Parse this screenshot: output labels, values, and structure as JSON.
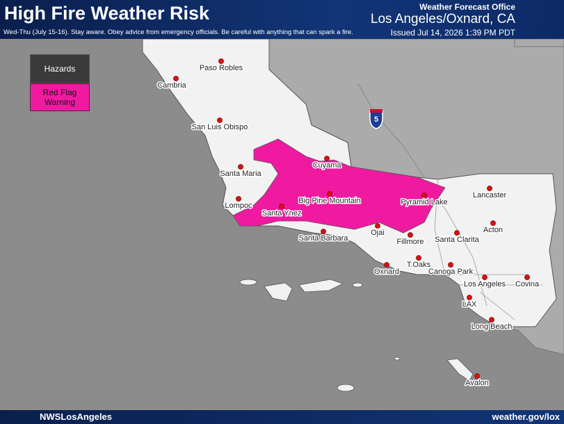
{
  "header": {
    "title": "High Fire Weather Risk",
    "subtitle": "Wed-Thu (July 15-16). Stay aware. Obey advice from emergency officials. Be careful with anything that can spark a fire.",
    "office": "Weather Forecast Office",
    "location": "Los Angeles/Oxnard, CA",
    "issued": "Issued Jul 14, 2026 1:39 PM PDT"
  },
  "legend": {
    "title": "Hazards",
    "items": [
      "Red Flag Warning"
    ]
  },
  "map": {
    "interstate": "5",
    "cities": [
      "Paso Robles",
      "Cambria",
      "San Luis Obispo",
      "Santa Maria",
      "Cuyama",
      "Lancaster",
      "Big Pine Mountain",
      "Pyramid Lake",
      "Lompoc",
      "Santa Ynez",
      "Acton",
      "Ojai",
      "Santa Barbara",
      "Fillmore",
      "Santa Clarita",
      "T.Oaks",
      "Oxnard",
      "Canoga Park",
      "Los Angeles",
      "Covina",
      "LAX",
      "Long Beach",
      "Avalon"
    ]
  },
  "footer": {
    "handle": "NWSLosAngeles",
    "url": "weather.gov/lox"
  }
}
